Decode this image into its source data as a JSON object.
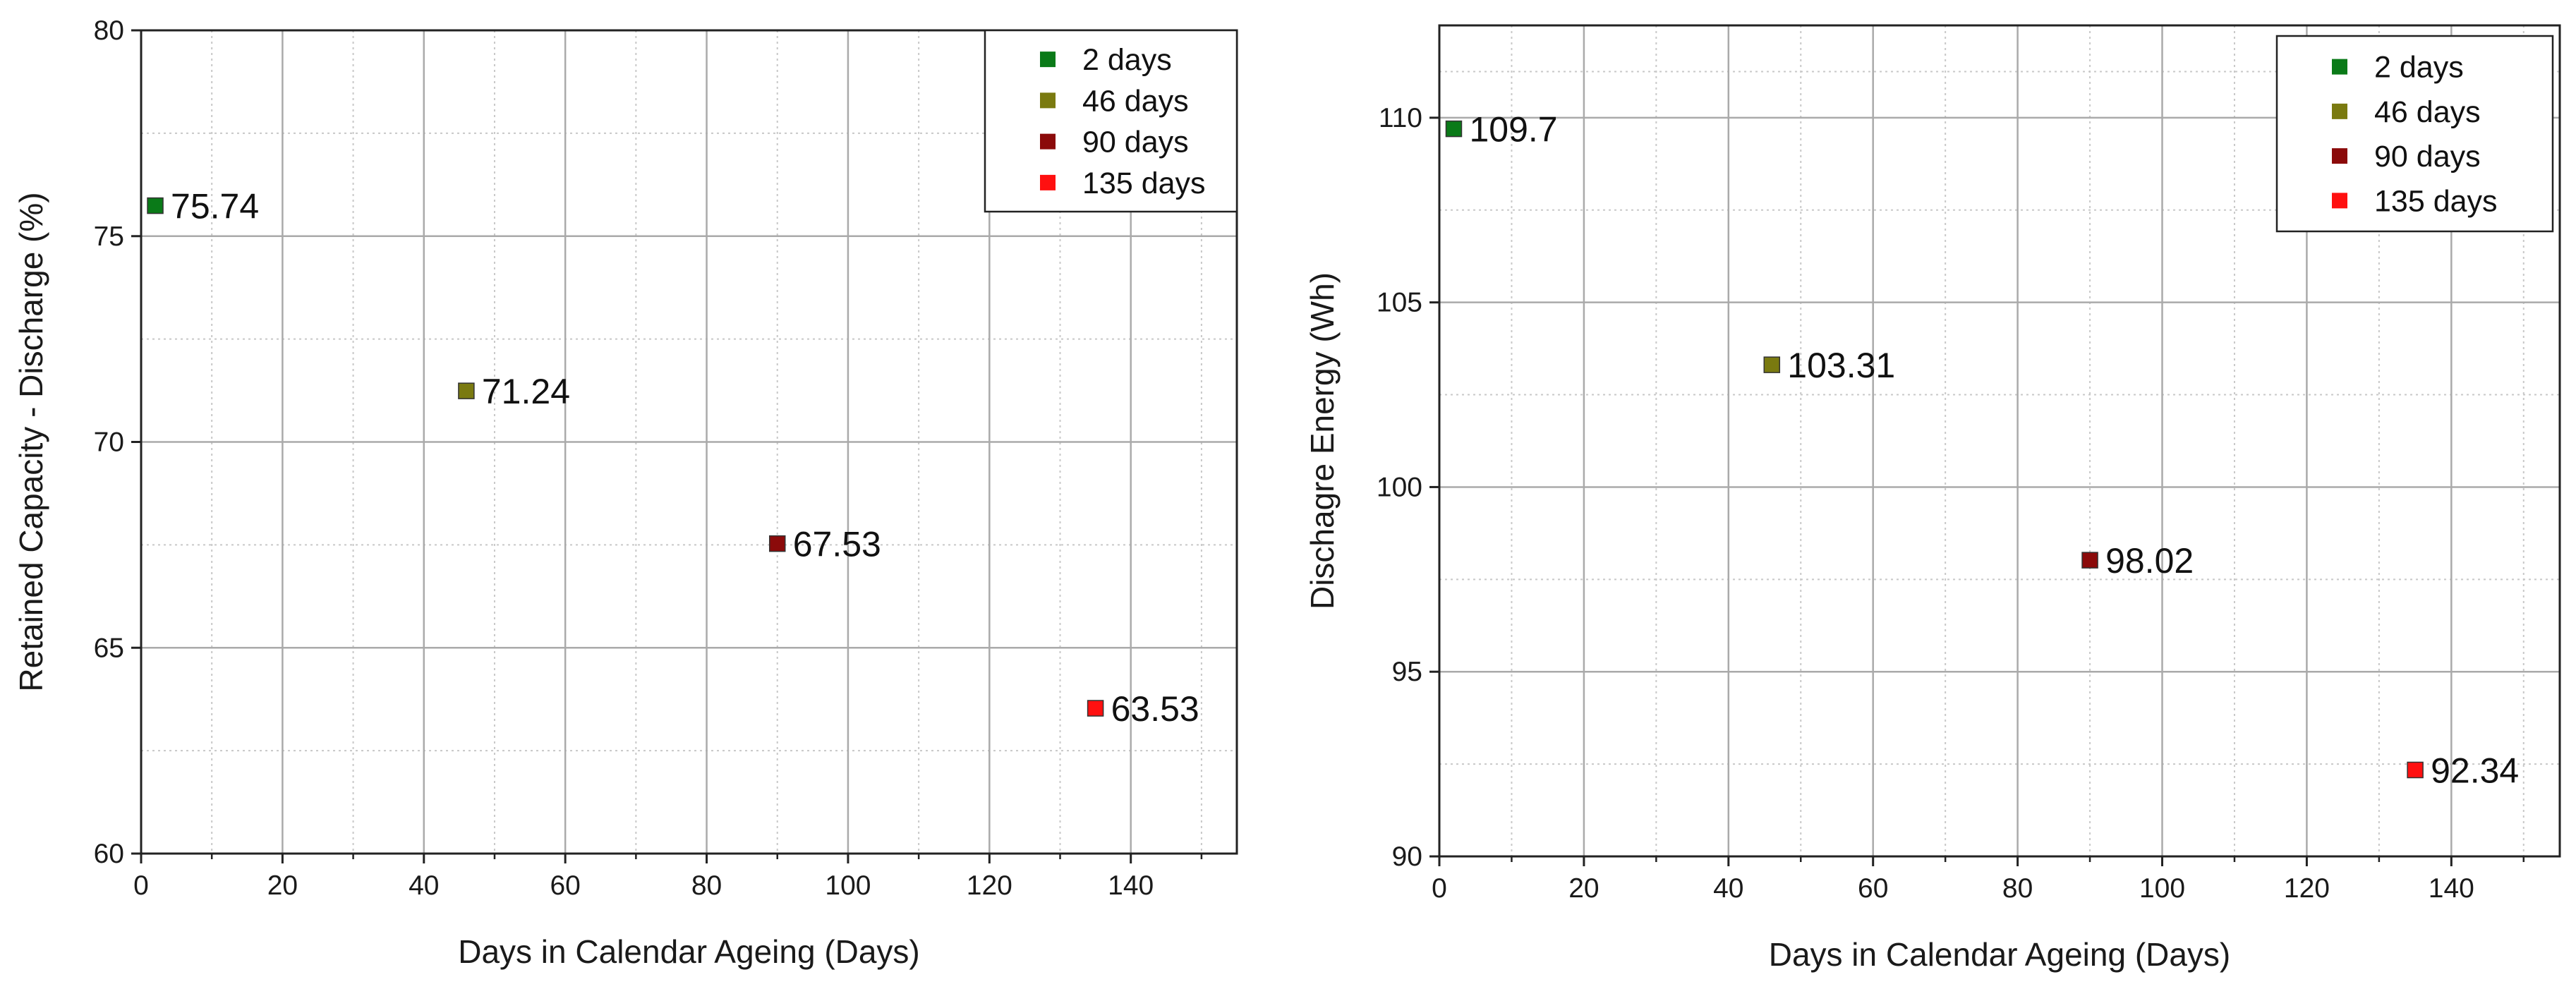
{
  "chart_data": [
    {
      "type": "scatter",
      "title": "",
      "xlabel": "Days in Calendar Ageing (Days)",
      "ylabel": "Retained Capacity - Discharge (%)",
      "xlim": [
        0,
        155
      ],
      "ylim": [
        60,
        80
      ],
      "xticks": [
        0,
        20,
        40,
        60,
        80,
        100,
        120,
        140
      ],
      "yticks": [
        60,
        65,
        70,
        75,
        80
      ],
      "grid": true,
      "legend_position": "top-right",
      "series": [
        {
          "name": "2 days",
          "color": "#0a7a18",
          "x": 2,
          "y": 75.74,
          "label": "75.74"
        },
        {
          "name": "46 days",
          "color": "#7a7a10",
          "x": 46,
          "y": 71.24,
          "label": "71.24"
        },
        {
          "name": "90 days",
          "color": "#8b0a0a",
          "x": 90,
          "y": 67.53,
          "label": "67.53"
        },
        {
          "name": "135 days",
          "color": "#ff1010",
          "x": 135,
          "y": 63.53,
          "label": "63.53"
        }
      ]
    },
    {
      "type": "scatter",
      "title": "",
      "xlabel": "Days in Calendar Ageing (Days)",
      "ylabel": "Dischagre Energy (Wh)",
      "xlim": [
        0,
        155
      ],
      "ylim": [
        90,
        112.5
      ],
      "xticks": [
        0,
        20,
        40,
        60,
        80,
        100,
        120,
        140
      ],
      "yticks": [
        90,
        95,
        100,
        105,
        110
      ],
      "grid": true,
      "legend_position": "top-right",
      "series": [
        {
          "name": "2 days",
          "color": "#0a7a18",
          "x": 2,
          "y": 109.7,
          "label": "109.7"
        },
        {
          "name": "46 days",
          "color": "#7a7a10",
          "x": 46,
          "y": 103.31,
          "label": "103.31"
        },
        {
          "name": "90 days",
          "color": "#8b0a0a",
          "x": 90,
          "y": 98.02,
          "label": "98.02"
        },
        {
          "name": "135 days",
          "color": "#ff1010",
          "x": 135,
          "y": 92.34,
          "label": "92.34"
        }
      ]
    }
  ]
}
